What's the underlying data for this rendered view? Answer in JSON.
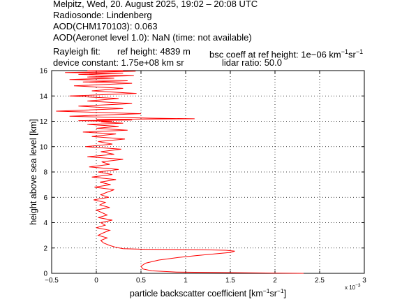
{
  "header": {
    "line1": "Melpitz, Wed, 20. August 2025, 19:02 – 20:08 UTC",
    "line2": "Radiosonde: Lindenberg",
    "line3": "AOD(CHM170103): 0.063",
    "line4": "AOD(Aeronet level 1.0): NaN   (time: not available)",
    "line5_a": "Rayleigh fit:",
    "line5_b": "ref height: 4839 m",
    "line5_c": "bsc coeff at ref height: 1e−06 km",
    "line5_sup1": "−1",
    "line5_d": "sr",
    "line5_sup2": "−1",
    "line6_a": "device constant: 1.75e+08 km sr",
    "line6_b": "lidar ratio: 50.0"
  },
  "chart_data": {
    "type": "line",
    "xlabel": "particle backscatter coefficient [km⁻¹sr⁻¹]",
    "xlabel_parts": {
      "pre": "particle backscatter coefficient [km",
      "sup1": "−1",
      "mid": "sr",
      "sup2": "−1",
      "post": "]"
    },
    "ylabel": "height above sea level [km]",
    "x_multiplier": "x 10",
    "x_multiplier_exp": "−3",
    "xlim": [
      -0.5,
      3
    ],
    "ylim": [
      0,
      16
    ],
    "xticks": [
      "−0.5",
      "0",
      "0.5",
      "1",
      "1.5",
      "2",
      "2.5",
      "3"
    ],
    "xtick_values": [
      -0.5,
      0,
      0.5,
      1,
      1.5,
      2,
      2.5,
      3
    ],
    "yticks": [
      "0",
      "2",
      "4",
      "6",
      "8",
      "10",
      "12",
      "14",
      "16"
    ],
    "ytick_values": [
      0,
      2,
      4,
      6,
      8,
      10,
      12,
      14,
      16
    ],
    "grid": true,
    "line_color": "#ff0000",
    "series": [
      {
        "x": [
          2.32,
          1.6,
          0.9,
          0.62,
          0.52,
          0.5,
          0.55,
          0.7,
          0.92,
          1.12,
          1.35,
          1.5,
          1.55,
          1.45,
          1.2,
          0.9,
          0.55,
          0.3,
          0.22,
          0.15,
          0.08,
          0.05,
          0.12,
          0.02,
          0.08,
          0.15,
          0.0,
          0.1,
          0.05,
          0.18,
          0.02,
          0.12,
          0.06,
          0.0,
          0.15,
          0.04,
          0.1,
          -0.03,
          0.14,
          0.05,
          0.12,
          0.2,
          -0.02,
          0.16,
          0.04,
          0.22,
          -0.05,
          0.18,
          0.02,
          0.25,
          -0.08,
          0.15,
          0.06,
          0.3,
          -0.1,
          0.2,
          0.05,
          0.28,
          -0.12,
          0.18,
          0.02,
          0.32,
          -0.05,
          0.22,
          -0.15,
          0.35,
          0.0,
          0.25,
          -0.1,
          0.3,
          0.05,
          0.18,
          -0.2,
          0.4,
          0.0,
          1.1,
          0.6,
          -0.3,
          0.5,
          -0.45,
          0.3,
          -0.2,
          0.4,
          -0.1,
          0.25,
          -0.3,
          0.45,
          -0.05,
          0.3,
          -0.25,
          0.4,
          -0.15,
          0.35,
          -0.3,
          0.2,
          -0.1,
          0.42,
          -0.2,
          0.3,
          -0.35,
          0.1,
          0.44,
          -0.1,
          0.3
        ],
        "y": [
          0.0,
          0.05,
          0.1,
          0.2,
          0.35,
          0.55,
          0.8,
          1.05,
          1.25,
          1.4,
          1.55,
          1.65,
          1.75,
          1.82,
          1.86,
          1.88,
          1.9,
          1.95,
          2.05,
          2.2,
          2.4,
          2.6,
          2.8,
          3.0,
          3.2,
          3.4,
          3.6,
          3.8,
          4.0,
          4.2,
          4.4,
          4.6,
          4.8,
          5.0,
          5.2,
          5.4,
          5.6,
          5.8,
          6.0,
          6.2,
          6.4,
          6.6,
          6.8,
          7.0,
          7.2,
          7.4,
          7.6,
          7.8,
          8.0,
          8.2,
          8.4,
          8.6,
          8.8,
          9.0,
          9.2,
          9.4,
          9.6,
          9.8,
          10.0,
          10.2,
          10.4,
          10.6,
          10.8,
          11.0,
          11.15,
          11.3,
          11.45,
          11.6,
          11.75,
          11.85,
          11.95,
          12.0,
          12.05,
          12.1,
          12.15,
          12.2,
          12.25,
          12.4,
          12.6,
          12.8,
          13.0,
          13.2,
          13.4,
          13.6,
          13.8,
          14.0,
          14.2,
          14.4,
          14.6,
          14.8,
          15.0,
          15.1,
          15.2,
          15.3,
          15.4,
          15.5,
          15.6,
          15.7,
          15.8,
          15.85,
          15.9,
          15.95,
          16.0,
          16.0
        ]
      }
    ]
  }
}
